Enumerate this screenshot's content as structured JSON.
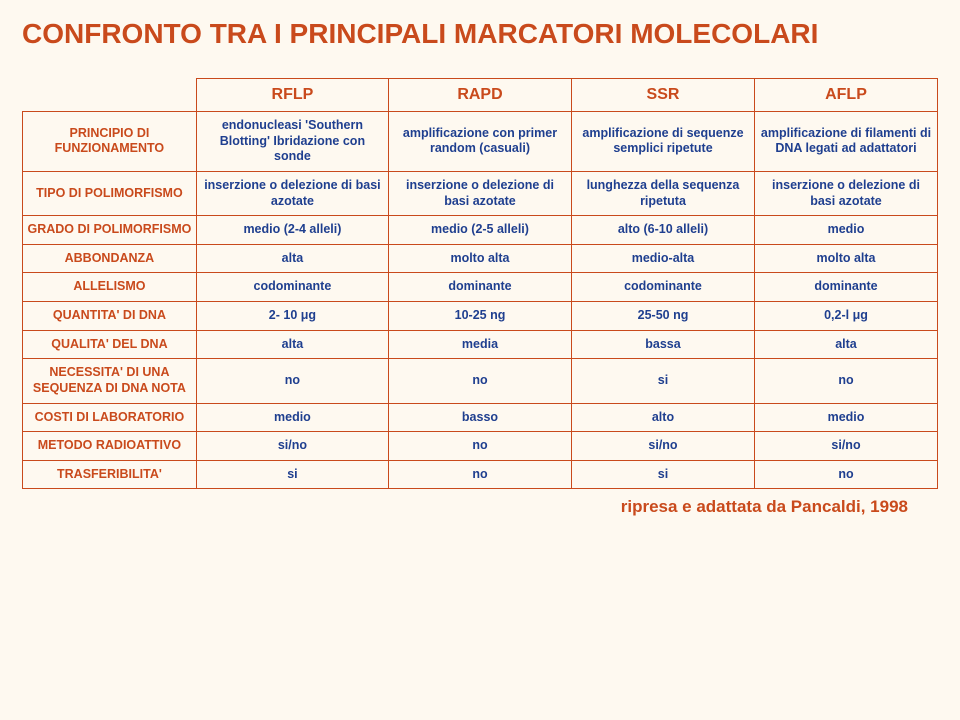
{
  "title": "CONFRONTO TRA I PRINCIPALI MARCATORI MOLECOLARI",
  "caption": "ripresa e adattata da Pancaldi, 1998",
  "columns": [
    "RFLP",
    "RAPD",
    "SSR",
    "AFLP"
  ],
  "rows": [
    {
      "label": "PRINCIPIO DI FUNZIONAMENTO",
      "cells": [
        "endonucleasi 'Southern Blotting' Ibridazione con sonde",
        "amplificazione con primer random (casuali)",
        "amplificazione di sequenze semplici ripetute",
        "amplificazione di filamenti di DNA legati ad adattatori"
      ]
    },
    {
      "label": "TIPO DI POLIMORFISMO",
      "cells": [
        "inserzione o delezione di basi azotate",
        "inserzione o delezione di basi azotate",
        "lunghezza della sequenza ripetuta",
        "inserzione o delezione di basi azotate"
      ]
    },
    {
      "label": "GRADO DI POLIMORFISMO",
      "cells": [
        "medio (2-4 alleli)",
        "medio (2-5 alleli)",
        "alto (6-10 alleli)",
        "medio"
      ]
    },
    {
      "label": "ABBONDANZA",
      "cells": [
        "alta",
        "molto alta",
        "medio-alta",
        "molto alta"
      ]
    },
    {
      "label": "ALLELISMO",
      "cells": [
        "codominante",
        "dominante",
        "codominante",
        "dominante"
      ]
    },
    {
      "label": "QUANTITA' DI DNA",
      "cells": [
        "2- 10 μg",
        "10-25 ng",
        "25-50 ng",
        "0,2-l μg"
      ]
    },
    {
      "label": "QUALITA' DEL DNA",
      "cells": [
        "alta",
        "media",
        "bassa",
        "alta"
      ]
    },
    {
      "label": "NECESSITA' DI UNA SEQUENZA DI DNA NOTA",
      "cells": [
        "no",
        "no",
        "si",
        "no"
      ]
    },
    {
      "label": "COSTI DI LABORATORIO",
      "cells": [
        "medio",
        "basso",
        "alto",
        "medio"
      ]
    },
    {
      "label": "METODO RADIOATTIVO",
      "cells": [
        "si/no",
        "no",
        "si/no",
        "si/no"
      ]
    },
    {
      "label": "TRASFERIBILITA'",
      "cells": [
        "si",
        "no",
        "si",
        "no"
      ]
    }
  ],
  "colors": {
    "accent": "#c94a1c",
    "cellText": "#1f3f8f",
    "background": "#fef9f0"
  }
}
